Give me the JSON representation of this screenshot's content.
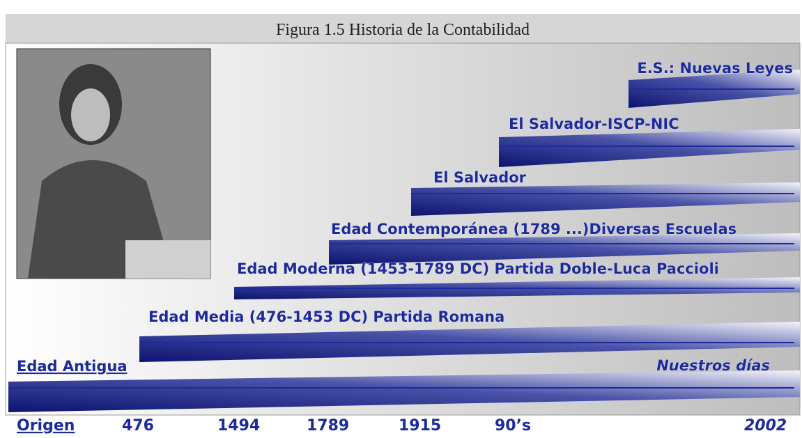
{
  "title": "Figura 1.5  Historia de la Contabilidad",
  "eras": [
    {
      "label": "Edad Antigua"
    },
    {
      "label": "Edad Media (476-1453 DC) Partida Romana"
    },
    {
      "label": "Edad Moderna (1453-1789 DC) Partida Doble-Luca Paccioli"
    },
    {
      "label": "Edad Contemporánea (1789 ...)Diversas Escuelas"
    },
    {
      "label": "El Salvador"
    },
    {
      "label": "El Salvador-ISCP-NIC"
    },
    {
      "label": "E.S.: Nuevas Leyes"
    }
  ],
  "end_label": "Nuestros días",
  "axis_labels": [
    "Origen",
    "476",
    "1494",
    "1789",
    "1915",
    "90’s",
    "2002"
  ]
}
